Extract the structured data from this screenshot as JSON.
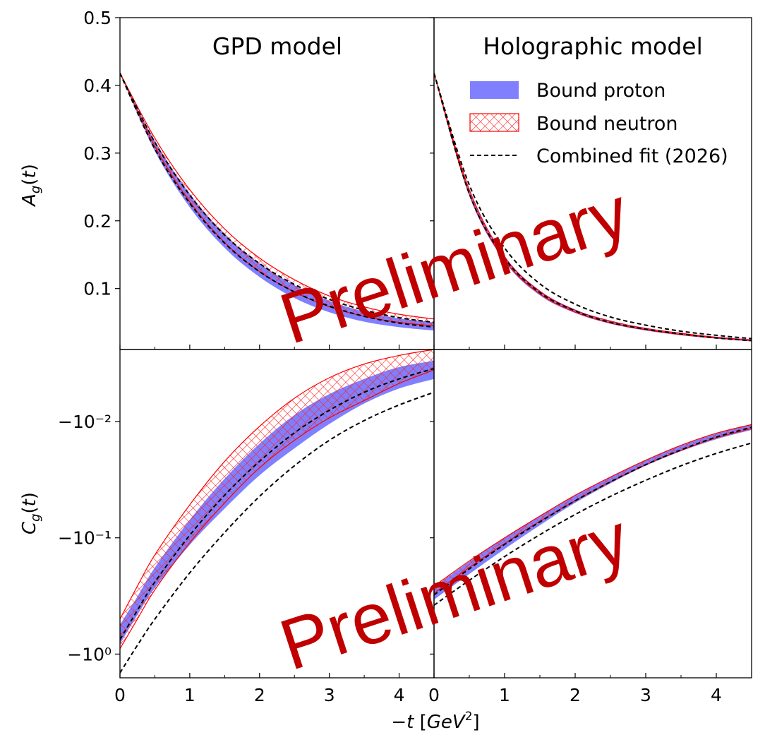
{
  "chart_data": {
    "type": "line",
    "x_axis": {
      "label": "−t [GeV²]",
      "range": [
        0,
        4.5
      ],
      "tick_labels_left": [
        "0",
        "1",
        "2",
        "3",
        "4"
      ],
      "tick_labels_right": [
        "0",
        "1",
        "2",
        "3",
        "4"
      ]
    },
    "columns": [
      {
        "title": "GPD model"
      },
      {
        "title": "Holographic model"
      }
    ],
    "top_row": {
      "ylabel": "A_g(t)",
      "ylim": [
        0.01,
        0.5
      ],
      "yticks": [
        0.1,
        0.2,
        0.3,
        0.4,
        0.5
      ],
      "ytick_labels": [
        "0.1",
        "0.2",
        "0.3",
        "0.4",
        "0.5"
      ]
    },
    "bottom_row": {
      "ylabel": "C_g(t)",
      "yscale": "symlog (negative)",
      "ylim": [
        -1.6,
        -0.0024
      ],
      "yticks": [
        -0.01,
        -0.1,
        -1
      ],
      "ytick_labels": [
        "−10⁻²",
        "−10⁻¹",
        "−10⁰"
      ]
    },
    "legend": {
      "placement": "top-right",
      "entries": [
        {
          "label": "Bound proton",
          "style": "filled band",
          "color": "#8080ff"
        },
        {
          "label": "Bound neutron",
          "style": "red cross-hatched band",
          "color": "#ff0000"
        },
        {
          "label": "Combined fit (2026)",
          "style": "dashed line",
          "color": "#000000"
        }
      ]
    },
    "watermarks": [
      "Preliminary",
      "Preliminary"
    ],
    "panels": [
      {
        "id": "A_gpd",
        "x": [
          0,
          0.5,
          1,
          1.5,
          2,
          2.5,
          3,
          3.5,
          4,
          4.5
        ],
        "proton_band": {
          "lower": [
            0.418,
            0.303,
            0.22,
            0.16,
            0.117,
            0.086,
            0.065,
            0.051,
            0.043,
            0.038
          ],
          "upper": [
            0.418,
            0.318,
            0.24,
            0.18,
            0.137,
            0.105,
            0.082,
            0.066,
            0.056,
            0.05
          ]
        },
        "neutron_band": {
          "lower": [
            0.418,
            0.31,
            0.228,
            0.168,
            0.125,
            0.095,
            0.073,
            0.059,
            0.05,
            0.045
          ],
          "upper": [
            0.418,
            0.322,
            0.246,
            0.188,
            0.145,
            0.113,
            0.089,
            0.073,
            0.062,
            0.055
          ]
        },
        "fit_lines": [
          [
            0.418,
            0.306,
            0.226,
            0.167,
            0.125,
            0.095,
            0.074,
            0.059,
            0.049,
            0.043
          ],
          [
            0.418,
            0.316,
            0.238,
            0.179,
            0.137,
            0.106,
            0.084,
            0.068,
            0.057,
            0.05
          ]
        ]
      },
      {
        "id": "A_holo",
        "x": [
          0,
          0.5,
          1,
          1.5,
          2,
          2.5,
          3,
          3.5,
          4,
          4.5
        ],
        "proton_band": {
          "lower": [
            0.418,
            0.237,
            0.14,
            0.09,
            0.064,
            0.048,
            0.038,
            0.031,
            0.026,
            0.022
          ],
          "upper": [
            0.418,
            0.247,
            0.148,
            0.097,
            0.069,
            0.052,
            0.042,
            0.034,
            0.029,
            0.025
          ]
        },
        "neutron_band": {
          "lower": [
            0.418,
            0.239,
            0.142,
            0.092,
            0.065,
            0.049,
            0.039,
            0.032,
            0.027,
            0.023
          ],
          "upper": [
            0.418,
            0.246,
            0.147,
            0.096,
            0.068,
            0.052,
            0.041,
            0.034,
            0.028,
            0.024
          ]
        },
        "fit_lines": [
          [
            0.418,
            0.24,
            0.145,
            0.094,
            0.067,
            0.05,
            0.04,
            0.033,
            0.027,
            0.023
          ],
          [
            0.418,
            0.253,
            0.16,
            0.107,
            0.077,
            0.058,
            0.046,
            0.037,
            0.031,
            0.026
          ]
        ]
      },
      {
        "id": "C_gpd",
        "x": [
          0,
          0.25,
          0.5,
          1,
          1.5,
          2,
          2.5,
          3,
          3.5,
          4,
          4.5
        ],
        "proton_band": {
          "lower": [
            -0.82,
            -0.46,
            -0.27,
            -0.115,
            -0.056,
            -0.029,
            -0.017,
            -0.0105,
            -0.007,
            -0.0052,
            -0.0043
          ],
          "upper": [
            -0.56,
            -0.32,
            -0.18,
            -0.07,
            -0.031,
            -0.0155,
            -0.0088,
            -0.0058,
            -0.0043,
            -0.0034,
            -0.003
          ]
        },
        "neutron_band": {
          "lower": [
            -0.9,
            -0.5,
            -0.28,
            -0.11,
            -0.05,
            -0.025,
            -0.0145,
            -0.0093,
            -0.0066,
            -0.0047,
            -0.0036
          ],
          "upper": [
            -0.5,
            -0.26,
            -0.14,
            -0.052,
            -0.022,
            -0.011,
            -0.0063,
            -0.0042,
            -0.0032,
            -0.0027,
            -0.0024
          ]
        },
        "fit_lines": [
          [
            -0.75,
            -0.42,
            -0.24,
            -0.095,
            -0.043,
            -0.022,
            -0.0125,
            -0.008,
            -0.0056,
            -0.0043,
            -0.0035
          ],
          [
            -1.45,
            -0.84,
            -0.5,
            -0.2,
            -0.09,
            -0.044,
            -0.024,
            -0.0145,
            -0.0098,
            -0.0072,
            -0.0056
          ]
        ]
      },
      {
        "id": "C_holo",
        "x": [
          0,
          0.5,
          1,
          1.5,
          2,
          2.5,
          3,
          3.5,
          4,
          4.5
        ],
        "proton_band": {
          "lower": [
            -0.34,
            -0.205,
            -0.125,
            -0.078,
            -0.05,
            -0.034,
            -0.024,
            -0.018,
            -0.0142,
            -0.0118
          ],
          "upper": [
            -0.265,
            -0.16,
            -0.1,
            -0.065,
            -0.043,
            -0.03,
            -0.0215,
            -0.0161,
            -0.0127,
            -0.0106
          ]
        },
        "neutron_band": {
          "lower": [
            -0.3,
            -0.18,
            -0.112,
            -0.072,
            -0.048,
            -0.033,
            -0.0235,
            -0.0177,
            -0.0138,
            -0.0115
          ],
          "upper": [
            -0.26,
            -0.158,
            -0.1,
            -0.065,
            -0.043,
            -0.03,
            -0.0215,
            -0.016,
            -0.0126,
            -0.0106
          ]
        },
        "fit_lines": [
          [
            -0.31,
            -0.185,
            -0.114,
            -0.073,
            -0.048,
            -0.033,
            -0.0235,
            -0.0175,
            -0.0136,
            -0.0112
          ],
          [
            -0.38,
            -0.232,
            -0.145,
            -0.094,
            -0.063,
            -0.044,
            -0.032,
            -0.024,
            -0.0188,
            -0.0153
          ]
        ]
      }
    ]
  }
}
